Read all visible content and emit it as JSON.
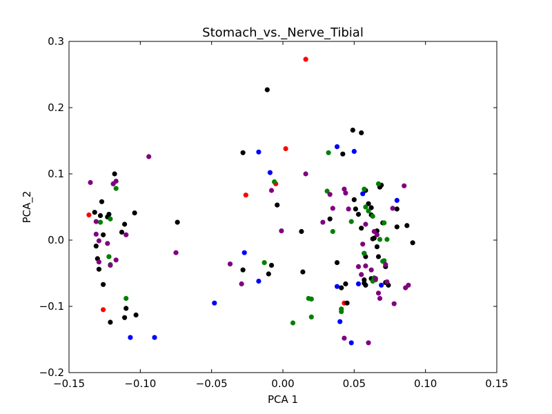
{
  "chart_data": {
    "type": "scatter",
    "title": "Stomach_vs._Nerve_Tibial",
    "xlabel": "PCA 1",
    "ylabel": "PCA_2",
    "xlim": [
      -0.15,
      0.15
    ],
    "ylim": [
      -0.2,
      0.3
    ],
    "xticks": [
      -0.15,
      -0.1,
      -0.05,
      0.0,
      0.05,
      0.1,
      0.15
    ],
    "xtick_labels": [
      "−0.15",
      "−0.10",
      "−0.05",
      "0.00",
      "0.05",
      "0.10",
      "0.15"
    ],
    "yticks": [
      -0.2,
      -0.1,
      0.0,
      0.1,
      0.2,
      0.3
    ],
    "ytick_labels": [
      "−0.2",
      "−0.1",
      "0.0",
      "0.1",
      "0.2",
      "0.3"
    ],
    "grid": false,
    "series": [
      {
        "name": "red",
        "color": "#ff0000",
        "points": [
          [
            0.016,
            0.273
          ],
          [
            0.002,
            0.138
          ],
          [
            -0.005,
            0.085
          ],
          [
            -0.026,
            0.068
          ],
          [
            -0.136,
            0.038
          ],
          [
            -0.126,
            -0.105
          ],
          [
            -0.122,
            -0.025
          ],
          [
            0.043,
            -0.095
          ]
        ]
      },
      {
        "name": "black",
        "color": "#000000",
        "points": [
          [
            -0.011,
            0.227
          ],
          [
            0.049,
            0.166
          ],
          [
            0.055,
            0.162
          ],
          [
            -0.028,
            0.132
          ],
          [
            0.042,
            0.13
          ],
          [
            -0.118,
            0.1
          ],
          [
            -0.127,
            0.058
          ],
          [
            -0.132,
            0.042
          ],
          [
            -0.122,
            0.039
          ],
          [
            -0.128,
            0.037
          ],
          [
            -0.123,
            0.035
          ],
          [
            -0.113,
            0.012
          ],
          [
            -0.111,
            0.024
          ],
          [
            -0.104,
            0.041
          ],
          [
            -0.074,
            0.027
          ],
          [
            -0.126,
            0.008
          ],
          [
            -0.131,
            -0.009
          ],
          [
            -0.13,
            -0.028
          ],
          [
            -0.129,
            -0.044
          ],
          [
            -0.126,
            -0.067
          ],
          [
            -0.11,
            -0.103
          ],
          [
            -0.111,
            -0.117
          ],
          [
            -0.103,
            -0.113
          ],
          [
            -0.121,
            -0.124
          ],
          [
            -0.004,
            0.053
          ],
          [
            -0.008,
            -0.038
          ],
          [
            -0.01,
            -0.051
          ],
          [
            -0.028,
            -0.045
          ],
          [
            0.013,
            0.013
          ],
          [
            0.014,
            -0.048
          ],
          [
            0.033,
            0.032
          ],
          [
            0.038,
            -0.034
          ],
          [
            0.041,
            -0.072
          ],
          [
            0.044,
            -0.066
          ],
          [
            0.045,
            -0.095
          ],
          [
            0.05,
            0.061
          ],
          [
            0.051,
            0.047
          ],
          [
            0.053,
            0.039
          ],
          [
            0.055,
            0.018
          ],
          [
            0.057,
            -0.06
          ],
          [
            0.057,
            -0.065
          ],
          [
            0.058,
            -0.068
          ],
          [
            0.058,
            0.075
          ],
          [
            0.06,
            0.055
          ],
          [
            0.062,
            0.049
          ],
          [
            0.062,
            0.038
          ],
          [
            0.063,
            0.002
          ],
          [
            0.064,
            0.003
          ],
          [
            0.066,
            0.014
          ],
          [
            0.066,
            -0.01
          ],
          [
            0.067,
            -0.025
          ],
          [
            0.068,
            0.08
          ],
          [
            0.069,
            0.083
          ],
          [
            0.07,
            0.026
          ],
          [
            0.072,
            -0.04
          ],
          [
            0.072,
            -0.064
          ],
          [
            0.074,
            -0.068
          ],
          [
            0.08,
            0.047
          ],
          [
            0.08,
            0.02
          ],
          [
            0.087,
            0.022
          ],
          [
            0.091,
            -0.004
          ],
          [
            0.058,
            -0.025
          ],
          [
            0.062,
            -0.058
          ]
        ]
      },
      {
        "name": "blue",
        "color": "#0000ff",
        "points": [
          [
            -0.017,
            0.133
          ],
          [
            -0.009,
            0.102
          ],
          [
            0.038,
            0.141
          ],
          [
            0.05,
            0.134
          ],
          [
            0.056,
            0.07
          ],
          [
            0.08,
            0.06
          ],
          [
            -0.027,
            -0.019
          ],
          [
            -0.017,
            -0.062
          ],
          [
            -0.048,
            -0.095
          ],
          [
            -0.107,
            -0.147
          ],
          [
            -0.09,
            -0.147
          ],
          [
            0.038,
            -0.07
          ],
          [
            0.04,
            -0.123
          ],
          [
            0.048,
            -0.155
          ],
          [
            0.053,
            -0.066
          ],
          [
            0.057,
            -0.02
          ],
          [
            0.069,
            -0.068
          ]
        ]
      },
      {
        "name": "green",
        "color": "#008000",
        "points": [
          [
            0.032,
            0.132
          ],
          [
            -0.006,
            0.088
          ],
          [
            0.031,
            0.074
          ],
          [
            0.057,
            0.077
          ],
          [
            0.067,
            0.085
          ],
          [
            -0.117,
            0.078
          ],
          [
            -0.128,
            0.027
          ],
          [
            -0.121,
            0.032
          ],
          [
            -0.122,
            -0.025
          ],
          [
            -0.121,
            -0.037
          ],
          [
            -0.11,
            -0.088
          ],
          [
            -0.013,
            -0.034
          ],
          [
            0.007,
            -0.125
          ],
          [
            0.018,
            -0.088
          ],
          [
            0.02,
            -0.089
          ],
          [
            0.02,
            -0.116
          ],
          [
            0.035,
            0.013
          ],
          [
            0.041,
            -0.104
          ],
          [
            0.041,
            -0.108
          ],
          [
            0.048,
            0.028
          ],
          [
            0.057,
            -0.02
          ],
          [
            0.058,
            0.05
          ],
          [
            0.06,
            0.044
          ],
          [
            0.063,
            0.036
          ],
          [
            0.064,
            -0.057
          ],
          [
            0.065,
            -0.06
          ],
          [
            0.068,
            0.001
          ],
          [
            0.07,
            -0.032
          ],
          [
            0.071,
            0.026
          ],
          [
            0.071,
            -0.031
          ],
          [
            0.073,
            0.001
          ],
          [
            0.063,
            -0.062
          ]
        ]
      },
      {
        "name": "purple",
        "color": "#800080",
        "points": [
          [
            -0.094,
            0.126
          ],
          [
            0.016,
            0.1
          ],
          [
            -0.008,
            0.075
          ],
          [
            0.033,
            0.069
          ],
          [
            0.043,
            0.077
          ],
          [
            0.046,
            0.047
          ],
          [
            0.035,
            0.048
          ],
          [
            0.044,
            0.071
          ],
          [
            -0.135,
            0.087
          ],
          [
            -0.119,
            0.085
          ],
          [
            -0.117,
            0.089
          ],
          [
            -0.131,
            0.028
          ],
          [
            -0.131,
            0.009
          ],
          [
            -0.123,
            -0.005
          ],
          [
            -0.129,
            -0.001
          ],
          [
            -0.117,
            -0.03
          ],
          [
            -0.121,
            -0.038
          ],
          [
            -0.11,
            0.008
          ],
          [
            -0.129,
            -0.033
          ],
          [
            -0.075,
            -0.019
          ],
          [
            -0.037,
            -0.036
          ],
          [
            -0.029,
            -0.066
          ],
          [
            -0.001,
            0.014
          ],
          [
            0.028,
            0.027
          ],
          [
            0.053,
            -0.04
          ],
          [
            0.055,
            -0.052
          ],
          [
            0.056,
            -0.006
          ],
          [
            0.058,
            0.024
          ],
          [
            0.058,
            -0.039
          ],
          [
            0.06,
            -0.155
          ],
          [
            0.062,
            -0.045
          ],
          [
            0.064,
            0.013
          ],
          [
            0.065,
            -0.058
          ],
          [
            0.066,
            0.008
          ],
          [
            0.067,
            -0.08
          ],
          [
            0.068,
            -0.088
          ],
          [
            0.072,
            -0.037
          ],
          [
            0.073,
            -0.063
          ],
          [
            0.077,
            0.048
          ],
          [
            0.078,
            -0.096
          ],
          [
            0.085,
            0.082
          ],
          [
            0.086,
            -0.072
          ],
          [
            0.088,
            -0.068
          ],
          [
            0.043,
            -0.148
          ]
        ]
      }
    ]
  }
}
